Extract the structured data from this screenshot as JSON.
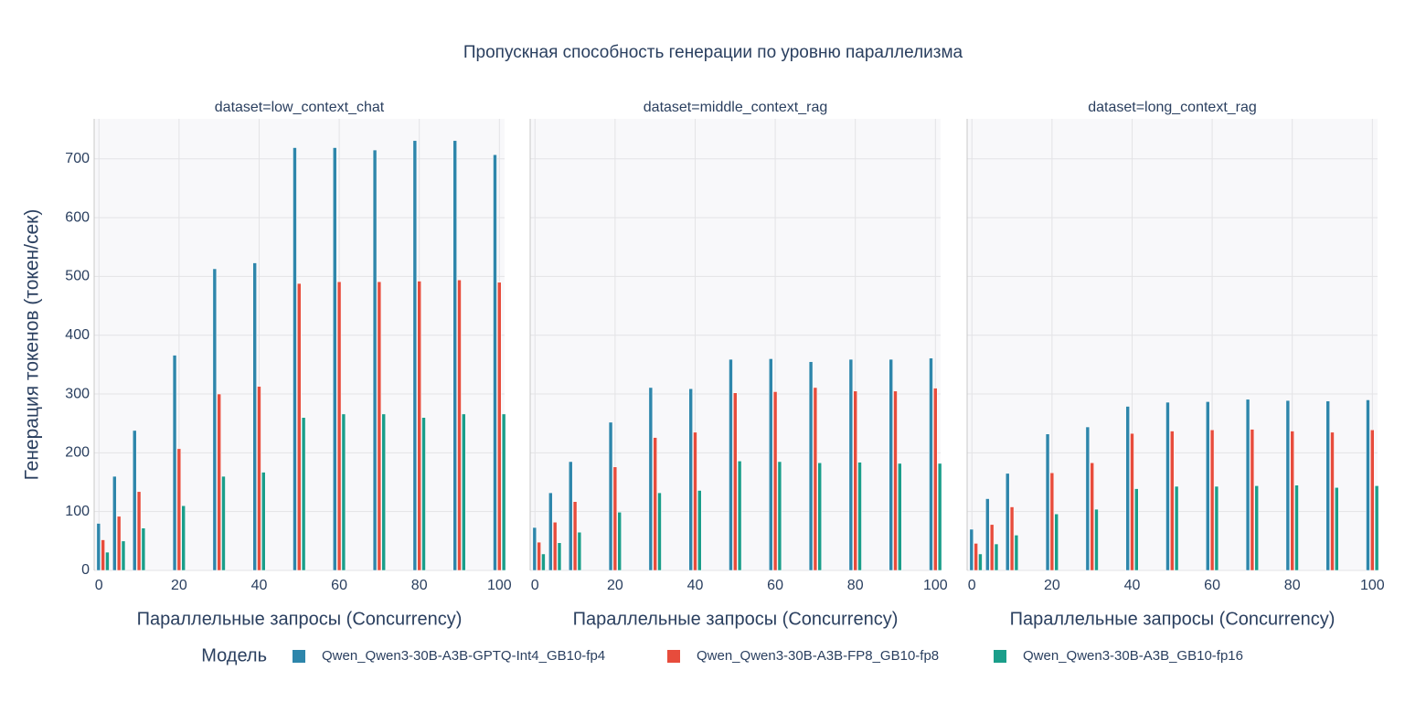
{
  "title": "Пропускная способность генерации по уровню параллелизма",
  "y_label": "Генерация токенов (токен/сек)",
  "legend_title": "Модель",
  "chart_data": [
    {
      "type": "bar",
      "title": "dataset=low_context_chat",
      "x_label": "Параллельные запросы (Concurrency)",
      "x": [
        1,
        5,
        10,
        20,
        30,
        40,
        50,
        60,
        70,
        80,
        90,
        100
      ],
      "series": [
        {
          "name": "Qwen_Qwen3-30B-A3B-GPTQ-Int4_GB10-fp4",
          "color": "#2e86ab",
          "values": [
            80,
            160,
            238,
            366,
            513,
            523,
            719,
            719,
            715,
            731,
            731,
            707
          ]
        },
        {
          "name": "Qwen_Qwen3-30B-A3B-FP8_GB10-fp8",
          "color": "#e74c3c",
          "values": [
            52,
            92,
            134,
            207,
            300,
            313,
            488,
            491,
            491,
            492,
            494,
            490
          ]
        },
        {
          "name": "Qwen_Qwen3-30B-A3B_GB10-fp16",
          "color": "#1a9e8a",
          "values": [
            31,
            50,
            72,
            110,
            160,
            167,
            260,
            266,
            266,
            260,
            266,
            266
          ]
        }
      ],
      "xlim": [
        -1.2,
        101.3
      ],
      "ylim": [
        0,
        768
      ],
      "xticks": [
        0,
        20,
        40,
        60,
        80,
        100
      ],
      "yticks": [
        0,
        100,
        200,
        300,
        400,
        500,
        600,
        700
      ],
      "grid": true
    },
    {
      "type": "bar",
      "title": "dataset=middle_context_rag",
      "x_label": "Параллельные запросы (Concurrency)",
      "x": [
        1,
        5,
        10,
        20,
        30,
        40,
        50,
        60,
        70,
        80,
        90,
        100
      ],
      "series": [
        {
          "color": "#2e86ab",
          "values": [
            73,
            132,
            185,
            252,
            311,
            309,
            359,
            360,
            355,
            359,
            359,
            361
          ]
        },
        {
          "color": "#e74c3c",
          "values": [
            48,
            82,
            117,
            176,
            226,
            235,
            302,
            304,
            311,
            305,
            305,
            310
          ]
        },
        {
          "color": "#1a9e8a",
          "values": [
            28,
            47,
            65,
            99,
            132,
            136,
            186,
            185,
            183,
            184,
            182,
            182
          ]
        }
      ],
      "xlim": [
        -1.2,
        101.3
      ],
      "ylim": [
        0,
        768
      ],
      "xticks": [
        0,
        20,
        40,
        60,
        80,
        100
      ],
      "yticks": [
        0,
        100,
        200,
        300,
        400,
        500,
        600,
        700
      ],
      "grid": true
    },
    {
      "type": "bar",
      "title": "dataset=long_context_rag",
      "x_label": "Параллельные запросы (Concurrency)",
      "x": [
        1,
        5,
        10,
        20,
        30,
        40,
        50,
        60,
        70,
        80,
        90,
        100
      ],
      "series": [
        {
          "color": "#2e86ab",
          "values": [
            70,
            122,
            165,
            232,
            244,
            279,
            286,
            287,
            291,
            289,
            288,
            290
          ]
        },
        {
          "color": "#e74c3c",
          "values": [
            46,
            78,
            108,
            166,
            183,
            233,
            237,
            239,
            240,
            237,
            235,
            239
          ]
        },
        {
          "color": "#1a9e8a",
          "values": [
            28,
            45,
            60,
            96,
            104,
            139,
            143,
            143,
            144,
            145,
            141,
            144
          ]
        }
      ],
      "xlim": [
        -1.2,
        101.3
      ],
      "ylim": [
        0,
        768
      ],
      "xticks": [
        0,
        20,
        40,
        60,
        80,
        100
      ],
      "yticks": [
        0,
        100,
        200,
        300,
        400,
        500,
        600,
        700
      ],
      "grid": true
    }
  ]
}
